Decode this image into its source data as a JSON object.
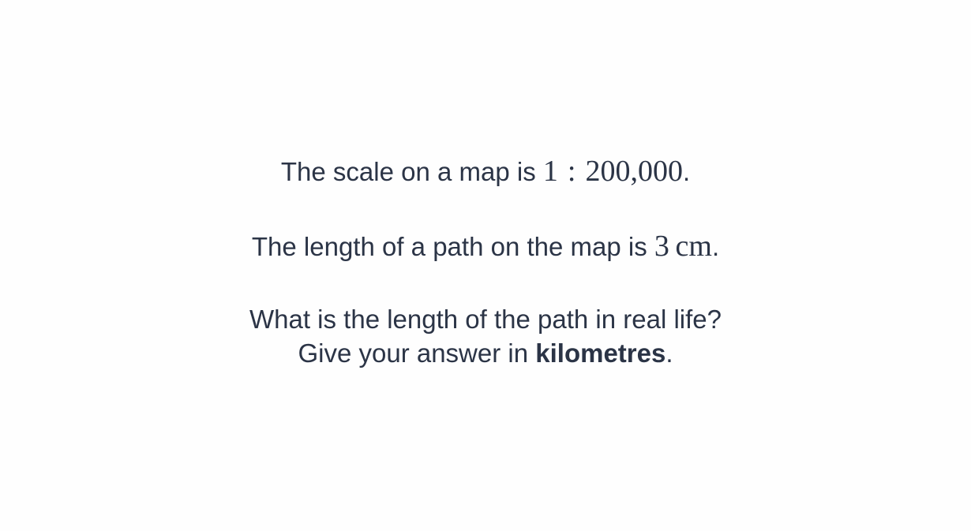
{
  "question": {
    "line1": {
      "prefix": "The scale on a map is ",
      "ratio_left": "1",
      "ratio_sep": ":",
      "ratio_right": "200,000",
      "suffix": "."
    },
    "line2": {
      "prefix": "The length of a path on the map is ",
      "value": "3",
      "unit": "cm",
      "suffix": "."
    },
    "line3": {
      "text": "What is the length of the path in real life?"
    },
    "line4": {
      "prefix": "Give your answer in ",
      "emphasis": "kilometres",
      "suffix": "."
    }
  }
}
